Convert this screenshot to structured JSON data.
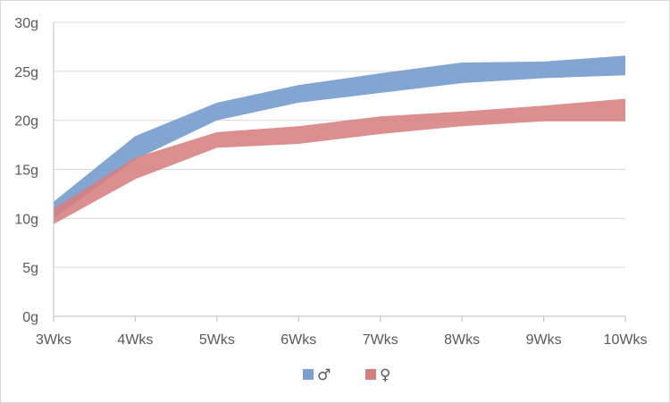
{
  "chart_data": {
    "type": "area",
    "categories": [
      "3Wks",
      "4Wks",
      "5Wks",
      "6Wks",
      "7Wks",
      "8Wks",
      "9Wks",
      "10Wks"
    ],
    "y_ticks": [
      "0g",
      "5g",
      "10g",
      "15g",
      "20g",
      "25g",
      "30g"
    ],
    "ylim": [
      0,
      30
    ],
    "y_unit": "g",
    "grid": true,
    "legend_position": "bottom",
    "series": [
      {
        "name": "♂",
        "color": "#7ba0d0",
        "lower": [
          10.0,
          16.0,
          20.0,
          21.8,
          22.8,
          23.8,
          24.3,
          24.6
        ],
        "upper": [
          11.7,
          18.4,
          21.8,
          23.6,
          24.8,
          25.9,
          26.0,
          26.6
        ]
      },
      {
        "name": "♀",
        "color": "#d67f7f",
        "lower": [
          9.4,
          14.0,
          17.2,
          17.6,
          18.6,
          19.4,
          19.9,
          19.9
        ],
        "upper": [
          11.0,
          16.2,
          18.8,
          19.4,
          20.4,
          20.9,
          21.5,
          22.2
        ]
      }
    ]
  }
}
